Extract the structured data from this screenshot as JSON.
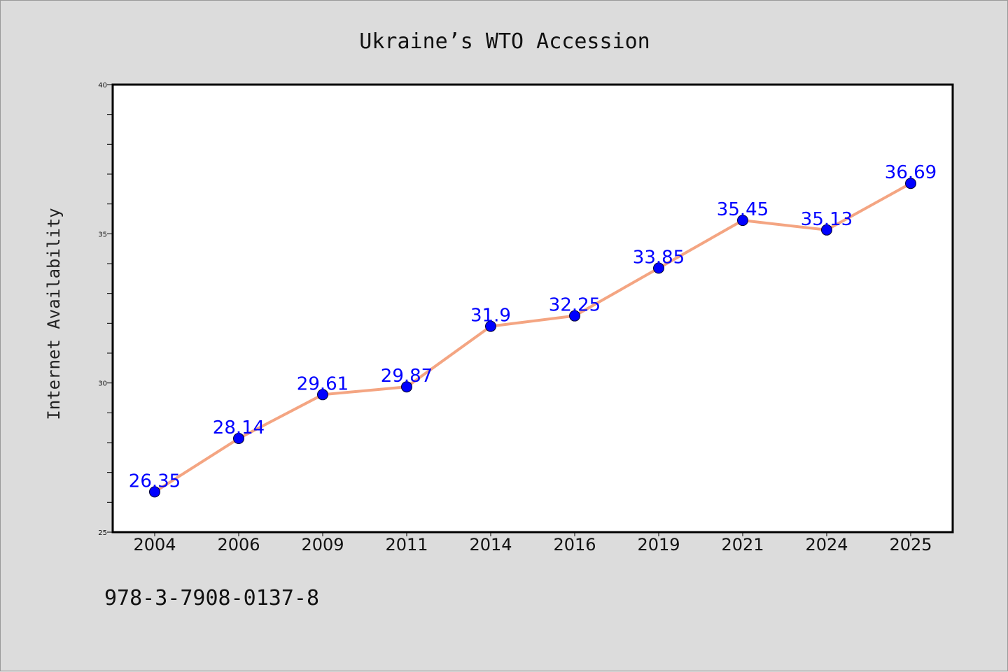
{
  "chart_data": {
    "type": "line",
    "title": "Ukraine’s WTO Accession",
    "xlabel": "",
    "ylabel": "Internet Availability",
    "categories": [
      "2004",
      "2006",
      "2009",
      "2011",
      "2014",
      "2016",
      "2019",
      "2021",
      "2024",
      "2025"
    ],
    "series": [
      {
        "values": [
          26.35,
          28.14,
          29.61,
          29.87,
          31.9,
          32.25,
          33.85,
          35.45,
          35.13,
          36.69
        ],
        "data_labels": [
          "26.35",
          "28.14",
          "29.61",
          "29.87",
          "31.9",
          "32.25",
          "33.85",
          "35.45",
          "35.13",
          "36.69"
        ]
      }
    ],
    "ylim": [
      25,
      40
    ],
    "yticks": [
      "25",
      "30",
      "35",
      "40"
    ],
    "grid": false,
    "legend": "none",
    "colors": {
      "line": "#f4a582",
      "marker": "#0000ff",
      "data_label": "#0000ff",
      "plot_background": "#ffffff",
      "figure_background": "#dcdcdc"
    }
  },
  "footer": {
    "isbn": "978-3-7908-0137-8"
  }
}
